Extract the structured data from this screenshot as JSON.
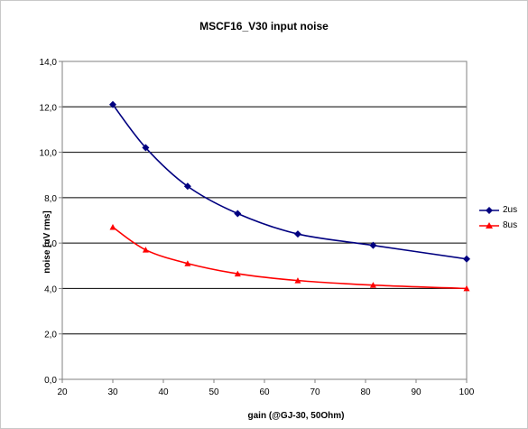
{
  "chart_data": {
    "type": "line",
    "title": "MSCF16_V30 input noise",
    "xlabel": "gain (@GJ-30, 50Ohm)",
    "ylabel": "noise [uV rms]",
    "xlim": [
      20,
      100
    ],
    "ylim": [
      0,
      14
    ],
    "x_ticks": [
      "20",
      "30",
      "40",
      "50",
      "60",
      "70",
      "80",
      "90",
      "100"
    ],
    "y_ticks": [
      "0,0",
      "2,0",
      "4,0",
      "6,0",
      "8,0",
      "10,0",
      "12,0",
      "14,0"
    ],
    "grid": "horizontal",
    "legend_position": "right",
    "series": [
      {
        "name": "2us",
        "color": "#000080",
        "marker": "diamond",
        "x": [
          30,
          36.5,
          44.8,
          54.7,
          66.6,
          81.5,
          100
        ],
        "y": [
          12.1,
          10.2,
          8.5,
          7.3,
          6.4,
          5.9,
          5.3
        ]
      },
      {
        "name": "8us",
        "color": "#ff0000",
        "marker": "triangle",
        "x": [
          30,
          36.5,
          44.8,
          54.7,
          66.6,
          81.5,
          100
        ],
        "y": [
          6.7,
          5.7,
          5.1,
          4.65,
          4.35,
          4.15,
          4.0
        ]
      }
    ]
  }
}
